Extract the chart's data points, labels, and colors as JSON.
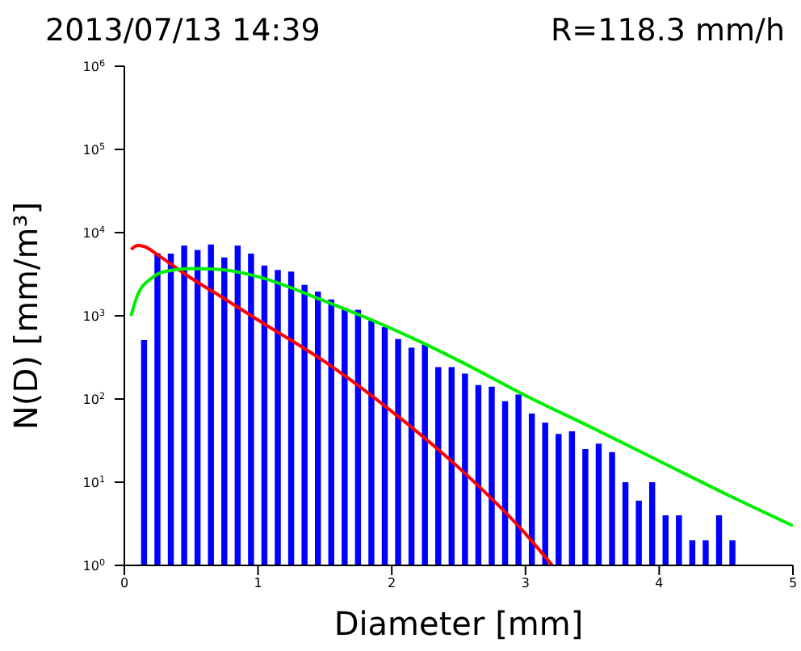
{
  "chart_data": {
    "type": "bar",
    "title": "2013/07/13 14:39",
    "subtitle": "R=118.3 mm/h",
    "xlabel": "Diameter [mm]",
    "ylabel": "N(D) [mm/m³]",
    "log": "y",
    "x": [
      0.15,
      0.25,
      0.35,
      0.45,
      0.55,
      0.65,
      0.75,
      0.85,
      0.95,
      1.05,
      1.15,
      1.25,
      1.35,
      1.45,
      1.55,
      1.65,
      1.75,
      1.85,
      1.95,
      2.05,
      2.15,
      2.25,
      2.35,
      2.45,
      2.55,
      2.65,
      2.75,
      2.85,
      2.95,
      3.05,
      3.15,
      3.25,
      3.35,
      3.45,
      3.55,
      3.65,
      3.75,
      3.85,
      3.95,
      4.05,
      4.15,
      4.25,
      4.35,
      4.45,
      4.55
    ],
    "xlim": [
      0,
      5
    ],
    "xticks": [
      0,
      1,
      2,
      3,
      4,
      5
    ],
    "ylim": [
      1,
      1000000
    ],
    "yticks": [
      {
        "value": 1,
        "label": "10$^{0}$"
      },
      {
        "value": 10,
        "label": "10$^{1}$"
      },
      {
        "value": 100,
        "label": "10$^{2}$"
      },
      {
        "value": 1000,
        "label": "10$^{3}$"
      },
      {
        "value": 10000,
        "label": "10$^{4}$"
      },
      {
        "value": 100000,
        "label": "10$^{5}$"
      },
      {
        "value": 1000000,
        "label": "10$^{6}$"
      }
    ],
    "series": [
      {
        "color": "#0000ff",
        "values": [
          510,
          5660,
          5580,
          6980,
          6200,
          7200,
          5030,
          6980,
          5590,
          4020,
          3560,
          3410,
          2350,
          1960,
          1570,
          1250,
          1180,
          875,
          730,
          526,
          414,
          453,
          242,
          242,
          202,
          147,
          141,
          94,
          113,
          67,
          52,
          38,
          41,
          25,
          29,
          23,
          10,
          6,
          10,
          4,
          4,
          2,
          2,
          4,
          2
        ]
      },
      {
        "type": "line",
        "color": "#ff0000",
        "x": [
          0.05,
          0.1,
          0.15,
          0.25,
          0.45,
          0.75,
          1.0,
          1.5,
          2.0,
          2.5,
          3.0,
          3.2
        ],
        "values": [
          6300,
          7000,
          6800,
          5400,
          3200,
          1600,
          890,
          280,
          71,
          15,
          2.4,
          1
        ]
      },
      {
        "type": "line",
        "color": "#00ee00",
        "x": [
          0.05,
          0.1,
          0.2,
          0.3,
          0.5,
          0.75,
          1.0,
          1.5,
          2.0,
          2.5,
          3.0,
          3.5,
          4.0,
          4.5,
          5.0
        ],
        "values": [
          1000,
          1800,
          2800,
          3400,
          3700,
          3550,
          2950,
          1500,
          700,
          290,
          110,
          45,
          18,
          7.2,
          3
        ]
      }
    ]
  }
}
